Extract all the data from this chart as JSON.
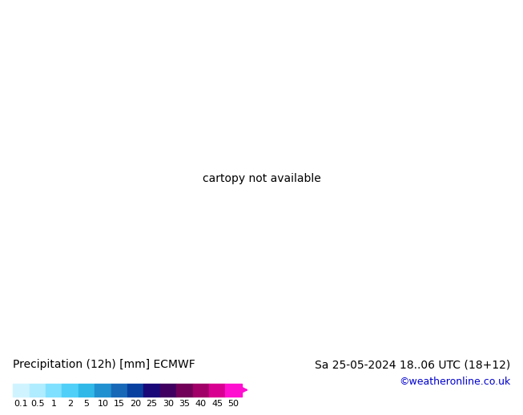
{
  "title_left": "Precipitation (12h) [mm] ECMWF",
  "title_right": "Sa 25-05-2024 18..06 UTC (18+12)",
  "credit": "©weatheronline.co.uk",
  "colorbar_values": [
    0.1,
    0.5,
    1,
    2,
    5,
    10,
    15,
    20,
    25,
    30,
    35,
    40,
    45,
    50
  ],
  "colorbar_colors": [
    "#d0f4ff",
    "#b0ecff",
    "#80e0ff",
    "#50d0f8",
    "#30b8e8",
    "#2090d0",
    "#1868b8",
    "#0840a0",
    "#180878",
    "#400060",
    "#700058",
    "#a00068",
    "#d80090",
    "#ff10d0"
  ],
  "ocean_color": "#cce8f0",
  "land_color": "#c8e8b0",
  "border_color": "#888888",
  "isobar_red": "#cc0000",
  "isobar_blue": "#0000cc",
  "bg_color": "#ffffff",
  "text_color": "#000000",
  "credit_color": "#0000cc",
  "title_fontsize": 10,
  "credit_fontsize": 9,
  "tick_fontsize": 8,
  "map_extent": [
    -30,
    80,
    -45,
    45
  ]
}
